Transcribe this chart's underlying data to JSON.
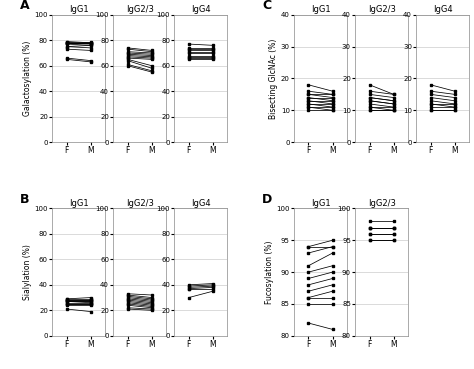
{
  "panel_A": {
    "title": "A",
    "subtitles": [
      "IgG1",
      "IgG2/3",
      "IgG4"
    ],
    "ylabel": "Galactosylation (%)",
    "ylim": [
      0,
      100
    ],
    "yticks": [
      0,
      20,
      40,
      60,
      80,
      100
    ],
    "data": {
      "IgG1": {
        "F": [
          79,
          79,
          78,
          78,
          78,
          78,
          77,
          75,
          75,
          73,
          66,
          65
        ],
        "M": [
          79,
          78,
          78,
          78,
          78,
          77,
          76,
          76,
          74,
          72,
          64,
          63
        ]
      },
      "IgG2/3": {
        "F": [
          74,
          73,
          71,
          70,
          69,
          68,
          67,
          66,
          65,
          64,
          61,
          60
        ],
        "M": [
          72,
          71,
          70,
          69,
          68,
          67,
          66,
          65,
          60,
          58,
          56,
          55
        ]
      },
      "IgG4": {
        "F": [
          77,
          74,
          73,
          72,
          71,
          70,
          68,
          67,
          66,
          65
        ],
        "M": [
          76,
          74,
          73,
          72,
          71,
          70,
          68,
          67,
          66,
          65
        ]
      }
    }
  },
  "panel_B": {
    "title": "B",
    "subtitles": [
      "IgG1",
      "IgG2/3",
      "IgG4"
    ],
    "ylabel": "Sialylation (%)",
    "ylim": [
      0,
      100
    ],
    "yticks": [
      0,
      20,
      40,
      60,
      80,
      100
    ],
    "data": {
      "IgG1": {
        "F": [
          29,
          29,
          28,
          28,
          27,
          27,
          27,
          26,
          25,
          25,
          24,
          21
        ],
        "M": [
          30,
          29,
          28,
          28,
          27,
          27,
          26,
          26,
          25,
          25,
          24,
          19
        ]
      },
      "IgG2/3": {
        "F": [
          33,
          32,
          31,
          30,
          29,
          28,
          27,
          26,
          25,
          24,
          22,
          21
        ],
        "M": [
          32,
          30,
          29,
          28,
          27,
          26,
          25,
          24,
          23,
          22,
          21,
          20
        ]
      },
      "IgG4": {
        "F": [
          40,
          39,
          38,
          37,
          37,
          30
        ],
        "M": [
          41,
          40,
          39,
          38,
          37,
          35
        ]
      }
    }
  },
  "panel_C": {
    "title": "C",
    "subtitles": [
      "IgG1",
      "IgG2/3",
      "IgG4"
    ],
    "ylabel": "Bisecting GlcNAc (%)",
    "ylim": [
      0,
      40
    ],
    "yticks": [
      0,
      10,
      20,
      30,
      40
    ],
    "data": {
      "IgG1": {
        "F": [
          18,
          16,
          15,
          15,
          14,
          14,
          13,
          13,
          12,
          12,
          11,
          11,
          10
        ],
        "M": [
          16,
          15,
          15,
          14,
          14,
          13,
          13,
          12,
          12,
          11,
          11,
          10,
          10
        ]
      },
      "IgG2/3": {
        "F": [
          18,
          16,
          15,
          14,
          14,
          13,
          13,
          12,
          11,
          11,
          10,
          10
        ],
        "M": [
          15,
          15,
          14,
          13,
          13,
          12,
          12,
          11,
          11,
          10,
          10,
          10
        ]
      },
      "IgG4": {
        "F": [
          18,
          16,
          15,
          14,
          13,
          12,
          12,
          11,
          10,
          10
        ],
        "M": [
          16,
          15,
          14,
          13,
          12,
          12,
          11,
          11,
          10,
          10
        ]
      }
    }
  },
  "panel_D": {
    "title": "D",
    "subtitles": [
      "IgG1",
      "IgG2/3"
    ],
    "ylabel": "Fucosylation (%)",
    "ylim": [
      80,
      100
    ],
    "yticks": [
      80,
      85,
      90,
      95,
      100
    ],
    "data": {
      "IgG1": {
        "F": [
          94,
          94,
          93,
          91,
          90,
          89,
          88,
          87,
          86,
          86,
          85,
          82
        ],
        "M": [
          95,
          94,
          94,
          93,
          91,
          90,
          89,
          88,
          87,
          86,
          85,
          81
        ]
      },
      "IgG2/3": {
        "F": [
          98,
          97,
          97,
          97,
          96,
          96,
          95,
          95
        ],
        "M": [
          98,
          97,
          97,
          97,
          96,
          96,
          95,
          95
        ]
      }
    }
  }
}
